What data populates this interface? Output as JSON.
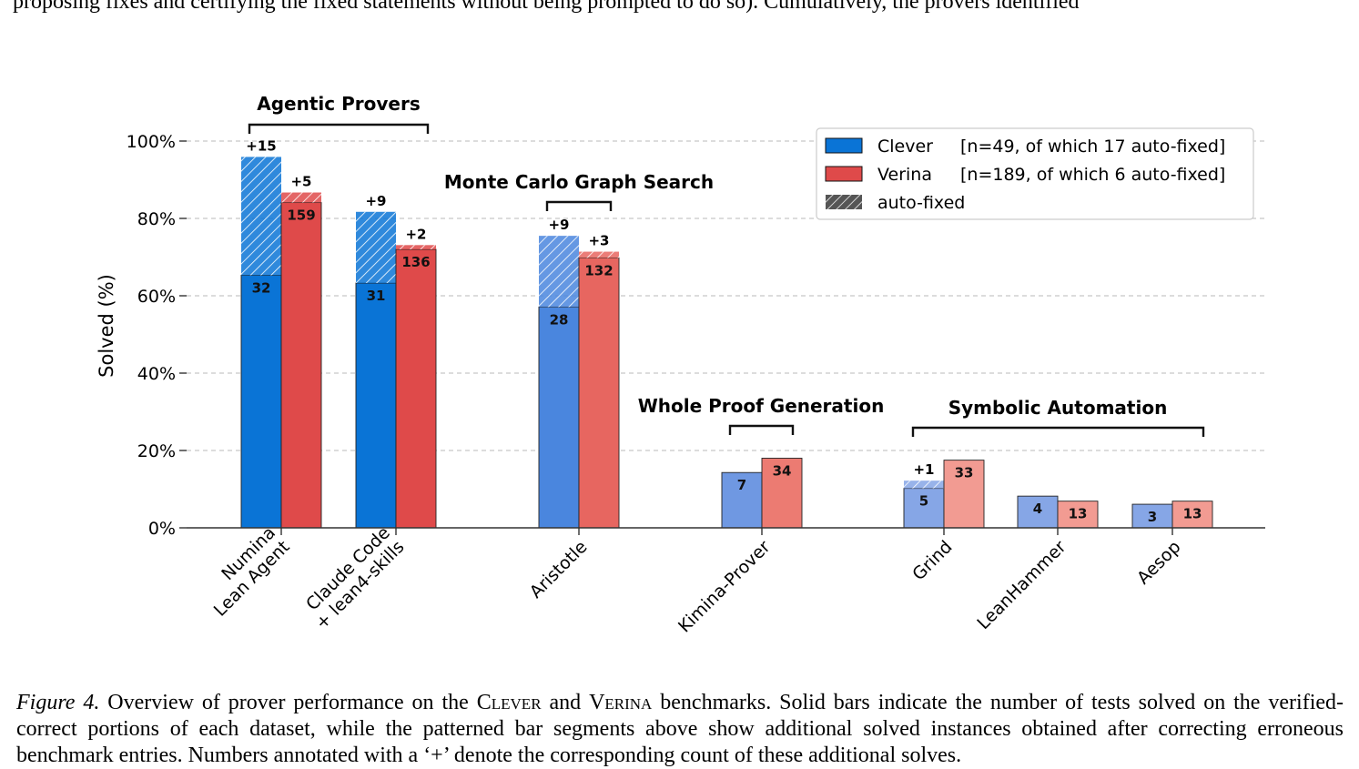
{
  "top_text": "proposing fixes and certifying the fixed statements without being prompted to do so). Cumulatively, the provers identified",
  "caption": {
    "label": "Figure 4.",
    "pre": " Overview of prover performance on the ",
    "bench1": "Clever",
    "mid": " and ",
    "bench2": "Verina",
    "post": " benchmarks. Solid bars indicate the number of tests solved on the verified-correct portions of each dataset, while the patterned bar segments above show additional solved instances obtained after correcting erroneous benchmark entries. Numbers annotated with a ‘+’ denote the corresponding count of these additional solves."
  },
  "chart_data": {
    "type": "bar",
    "ylabel": "Solved (%)",
    "ylim": [
      0,
      100
    ],
    "yticks": [
      "0%",
      "20%",
      "40%",
      "60%",
      "80%",
      "100%"
    ],
    "grid": true,
    "legend_position": "top-right",
    "legend": [
      {
        "name": "Clever",
        "note": "[n=49, of which 17 auto-fixed]"
      },
      {
        "name": "Verina",
        "note": "[n=189, of which 6 auto-fixed]"
      },
      {
        "name": "auto-fixed",
        "note": ""
      }
    ],
    "groups": [
      {
        "title": "Agentic Provers",
        "members": [
          "Numina Lean Agent",
          "Claude Code + lean4-skills"
        ]
      },
      {
        "title": "Monte Carlo Graph Search",
        "members": [
          "Aristotle"
        ]
      },
      {
        "title": "Whole Proof Generation",
        "members": [
          "Kimina-Prover"
        ]
      },
      {
        "title": "Symbolic Automation",
        "members": [
          "Grind",
          "LeanHammer",
          "Aesop"
        ]
      }
    ],
    "categories": [
      {
        "label": "Numina\nLean Agent",
        "clever": {
          "solved": 32,
          "pct": 65.3,
          "fixed": 15,
          "fixed_pct": 30.6
        },
        "verina": {
          "solved": 159,
          "pct": 84.1,
          "fixed": 5,
          "fixed_pct": 2.6
        }
      },
      {
        "label": "Claude Code\n+ lean4-skills",
        "clever": {
          "solved": 31,
          "pct": 63.3,
          "fixed": 9,
          "fixed_pct": 18.4
        },
        "verina": {
          "solved": 136,
          "pct": 72.0,
          "fixed": 2,
          "fixed_pct": 1.1
        }
      },
      {
        "label": "Aristotle",
        "clever": {
          "solved": 28,
          "pct": 57.1,
          "fixed": 9,
          "fixed_pct": 18.4
        },
        "verina": {
          "solved": 132,
          "pct": 69.8,
          "fixed": 3,
          "fixed_pct": 1.6
        }
      },
      {
        "label": "Kimina-Prover",
        "clever": {
          "solved": 7,
          "pct": 14.3,
          "fixed": 0,
          "fixed_pct": 0
        },
        "verina": {
          "solved": 34,
          "pct": 18.0,
          "fixed": 0,
          "fixed_pct": 0
        }
      },
      {
        "label": "Grind",
        "clever": {
          "solved": 5,
          "pct": 10.2,
          "fixed": 1,
          "fixed_pct": 2.0
        },
        "verina": {
          "solved": 33,
          "pct": 17.5,
          "fixed": 0,
          "fixed_pct": 0
        }
      },
      {
        "label": "LeanHammer",
        "clever": {
          "solved": 4,
          "pct": 8.2,
          "fixed": 0,
          "fixed_pct": 0
        },
        "verina": {
          "solved": 13,
          "pct": 6.9,
          "fixed": 0,
          "fixed_pct": 0
        }
      },
      {
        "label": "Aesop",
        "clever": {
          "solved": 3,
          "pct": 6.1,
          "fixed": 0,
          "fixed_pct": 0
        },
        "verina": {
          "solved": 13,
          "pct": 6.9,
          "fixed": 0,
          "fixed_pct": 0
        }
      }
    ],
    "colors": {
      "clever": [
        "#0a74d6",
        "#0a74d6",
        "#4a86de",
        "#6f98e2",
        "#86a6e6",
        "#86a6e6",
        "#86a6e6"
      ],
      "verina": [
        "#df4a4a",
        "#df4a4a",
        "#e76660",
        "#ec7b72",
        "#f29b92",
        "#f29b92",
        "#f29b92"
      ],
      "grid": "#c8c8c8",
      "axis": "#333333",
      "hatch_legend": "#555555"
    }
  }
}
